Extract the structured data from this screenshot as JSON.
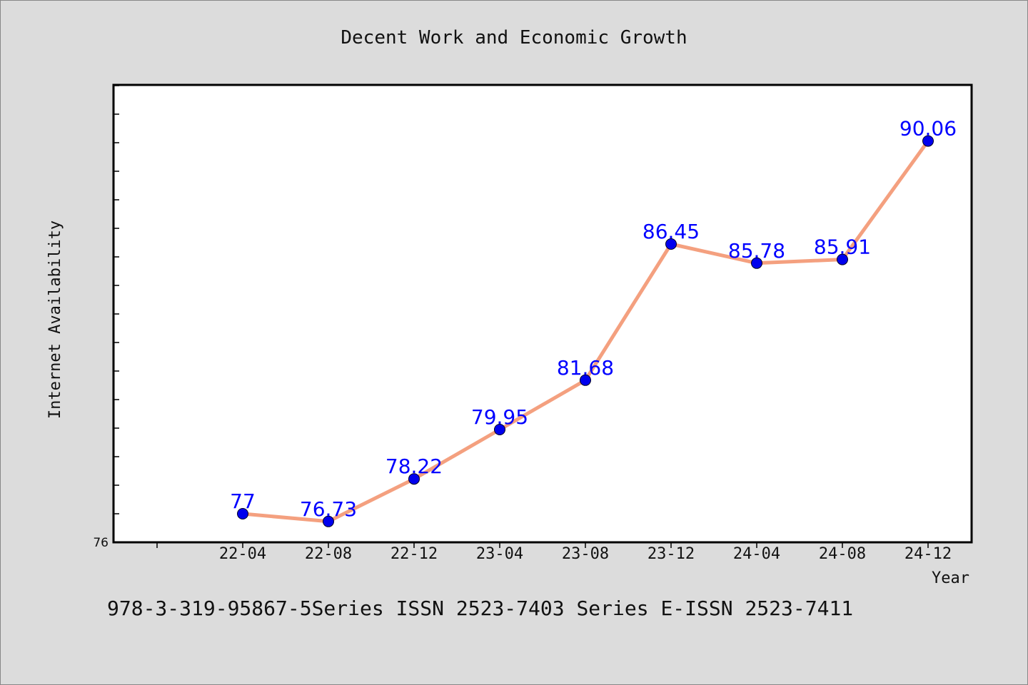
{
  "chart_data": {
    "type": "line",
    "title": "Decent Work and Economic Growth",
    "xlabel": "Year",
    "ylabel": "Internet Availability",
    "categories": [
      "22-04",
      "22-08",
      "22-12",
      "23-04",
      "23-08",
      "23-12",
      "24-04",
      "24-08",
      "24-12"
    ],
    "values": [
      77,
      76.73,
      78.22,
      79.95,
      81.68,
      86.45,
      85.78,
      85.91,
      90.06
    ],
    "data_labels": [
      "77",
      "76.73",
      "78.22",
      "79.95",
      "81.68",
      "86.45",
      "85.78",
      "85.91",
      "90.06"
    ],
    "ylim": [
      76,
      92
    ],
    "y_tick_labels": [
      "76"
    ],
    "grid": false,
    "line_color": "#f4a07f",
    "marker_color": "#0000ee",
    "label_color": "#0000ff"
  },
  "footer": {
    "text": "978-3-319-95867-5Series ISSN 2523-7403 Series E-ISSN 2523-7411"
  }
}
